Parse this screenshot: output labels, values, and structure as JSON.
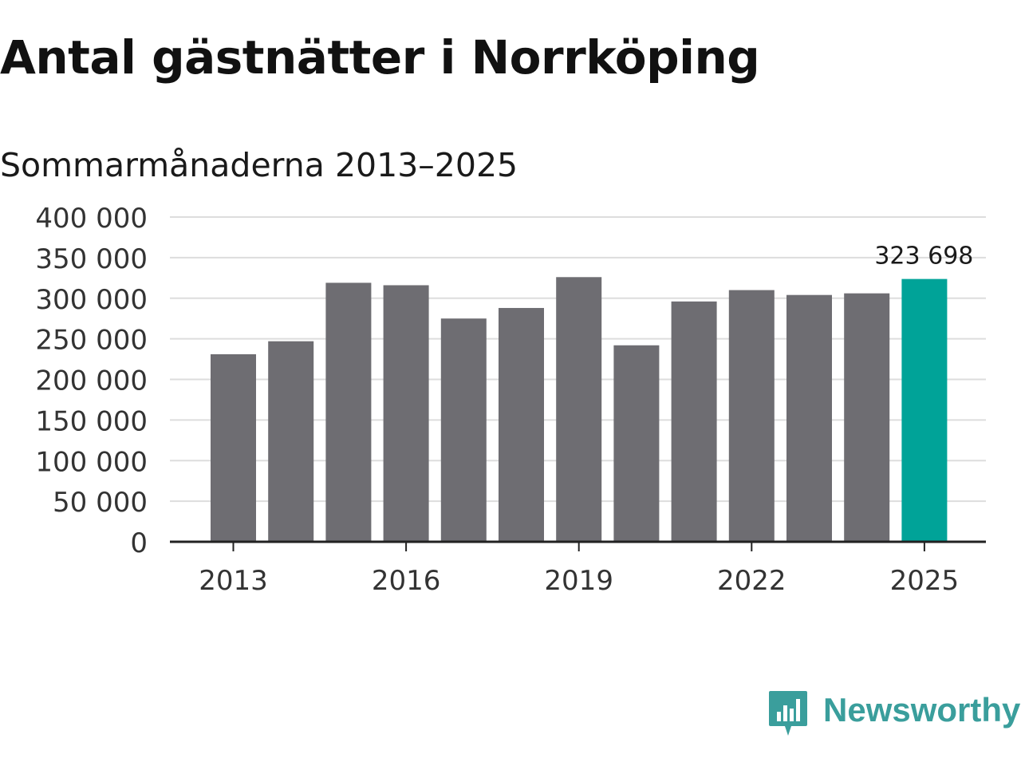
{
  "chart_data": {
    "type": "bar",
    "title": "Antal gästnätter i Norrköping",
    "subtitle": "Sommarmånaderna 2013–2025",
    "categories": [
      "2013",
      "2014",
      "2015",
      "2016",
      "2017",
      "2018",
      "2019",
      "2020",
      "2021",
      "2022",
      "2023",
      "2024",
      "2025"
    ],
    "values": [
      231000,
      247000,
      319000,
      316000,
      275000,
      288000,
      326000,
      242000,
      296000,
      310000,
      304000,
      306000,
      323698
    ],
    "xtick_labels": [
      "2013",
      "2016",
      "2019",
      "2022",
      "2025"
    ],
    "ytick_labels": [
      "0",
      "50 000",
      "100 000",
      "150 000",
      "200 000",
      "250 000",
      "300 000",
      "350 000",
      "400 000"
    ],
    "ylim": [
      0,
      400000
    ],
    "annotation": "323 698",
    "highlight_index": 12,
    "colors": {
      "bar": "#6e6d72",
      "highlight": "#00a398",
      "grid": "#dddddd",
      "axis": "#222222"
    },
    "grid": true
  },
  "branding": {
    "logo_text": "Newsworthy",
    "logo_icon": "newsworthy-chart-icon",
    "color": "#3a9e9c"
  }
}
